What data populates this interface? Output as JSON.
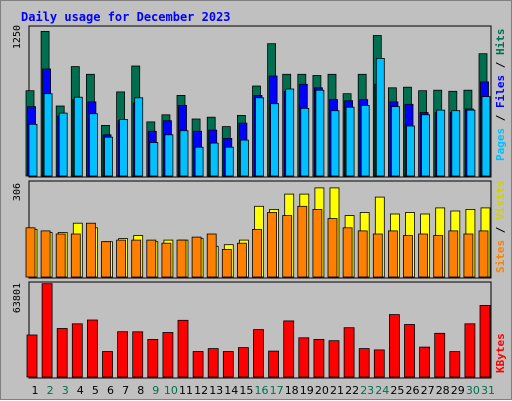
{
  "title": "Daily usage for December 2023",
  "colors": {
    "hits": "#006f4f",
    "files": "#0000ff",
    "pages": "#00c0ff",
    "visits": "#ffff00",
    "sites": "#ff8000",
    "kbytes": "#ff0000",
    "weekend_label": "#006f4f",
    "weekday_label": "#000000"
  },
  "chart_data": [
    {
      "type": "bar",
      "panel": "hits-files-pages",
      "ymax_label": "1250",
      "ylim": [
        0,
        1250
      ],
      "legend": {
        "pages": "Pages",
        "files": "Files",
        "hits": "Hits",
        "sep": " / "
      },
      "categories": [
        "1",
        "2",
        "3",
        "4",
        "5",
        "6",
        "7",
        "8",
        "9",
        "10",
        "11",
        "12",
        "13",
        "14",
        "15",
        "16",
        "17",
        "18",
        "19",
        "20",
        "21",
        "22",
        "23",
        "24",
        "25",
        "26",
        "27",
        "28",
        "29",
        "30",
        "31"
      ],
      "weekend": [
        false,
        true,
        true,
        false,
        false,
        false,
        false,
        false,
        true,
        true,
        false,
        false,
        false,
        false,
        false,
        true,
        true,
        false,
        false,
        false,
        false,
        false,
        true,
        true,
        false,
        false,
        false,
        false,
        false,
        true,
        true
      ],
      "series": [
        {
          "name": "Hits",
          "key": "hits",
          "values": [
            725,
            1230,
            595,
            930,
            865,
            430,
            715,
            935,
            460,
            520,
            685,
            485,
            500,
            420,
            515,
            765,
            1125,
            865,
            865,
            855,
            865,
            700,
            865,
            1195,
            750,
            755,
            725,
            730,
            720,
            730,
            1040
          ]
        },
        {
          "name": "Files",
          "key": "files",
          "values": [
            590,
            910,
            510,
            650,
            630,
            350,
            470,
            620,
            380,
            470,
            600,
            380,
            390,
            320,
            450,
            685,
            850,
            720,
            780,
            750,
            650,
            640,
            650,
            780,
            630,
            610,
            540,
            540,
            540,
            570,
            800
          ]
        },
        {
          "name": "Pages",
          "key": "pages",
          "values": [
            440,
            700,
            535,
            670,
            530,
            330,
            480,
            665,
            285,
            350,
            385,
            245,
            280,
            245,
            305,
            665,
            615,
            740,
            575,
            730,
            555,
            585,
            600,
            1000,
            590,
            425,
            520,
            560,
            555,
            560,
            675
          ]
        }
      ]
    },
    {
      "type": "bar",
      "panel": "visits-sites",
      "ymax_label": "306",
      "ylim": [
        0,
        306
      ],
      "legend": {
        "sites": "Sites",
        "visits": "Visits",
        "sep": " / "
      },
      "categories": [
        "1",
        "2",
        "3",
        "4",
        "5",
        "6",
        "7",
        "8",
        "9",
        "10",
        "11",
        "12",
        "13",
        "14",
        "15",
        "16",
        "17",
        "18",
        "19",
        "20",
        "21",
        "22",
        "23",
        "24",
        "25",
        "26",
        "27",
        "28",
        "29",
        "30",
        "31"
      ],
      "series": [
        {
          "name": "Visits",
          "key": "visits",
          "values": [
            155,
            145,
            145,
            175,
            160,
            115,
            125,
            135,
            115,
            120,
            120,
            125,
            100,
            105,
            120,
            230,
            220,
            270,
            270,
            290,
            290,
            200,
            210,
            260,
            205,
            210,
            205,
            225,
            215,
            220,
            225
          ]
        },
        {
          "name": "Sites",
          "key": "sites",
          "values": [
            160,
            150,
            140,
            140,
            175,
            115,
            120,
            120,
            120,
            110,
            120,
            130,
            140,
            90,
            110,
            155,
            210,
            200,
            230,
            220,
            190,
            160,
            150,
            140,
            150,
            135,
            140,
            135,
            150,
            140,
            150
          ]
        }
      ]
    },
    {
      "type": "bar",
      "panel": "kbytes",
      "ymax_label": "63801",
      "ylim": [
        0,
        63801
      ],
      "legend": {
        "kbytes": "KBytes"
      },
      "categories": [
        "1",
        "2",
        "3",
        "4",
        "5",
        "6",
        "7",
        "8",
        "9",
        "10",
        "11",
        "12",
        "13",
        "14",
        "15",
        "16",
        "17",
        "18",
        "19",
        "20",
        "21",
        "22",
        "23",
        "24",
        "25",
        "26",
        "27",
        "28",
        "29",
        "30",
        "31"
      ],
      "series": [
        {
          "name": "KBytes",
          "key": "kbytes",
          "values": [
            28800,
            64000,
            33300,
            36500,
            39100,
            17500,
            31100,
            31000,
            25800,
            30500,
            38900,
            17500,
            19500,
            17500,
            20200,
            32500,
            17800,
            38500,
            26900,
            25800,
            24900,
            33800,
            19500,
            18600,
            42800,
            36000,
            20500,
            30000,
            17400,
            36500,
            49100
          ]
        }
      ]
    }
  ]
}
